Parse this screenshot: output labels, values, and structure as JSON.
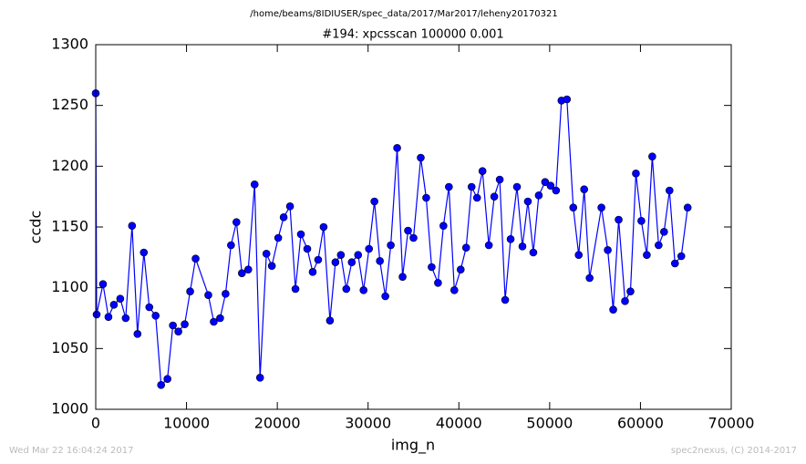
{
  "chart_data": {
    "type": "line",
    "suptitle": "/home/beams/8IDIUSER/spec_data/2017/Mar2017/leheny20170321",
    "title": "#194: xpcsscan 100000 0.001",
    "xlabel": "img_n",
    "ylabel": "ccdc",
    "footer_left": "Wed Mar 22 16:04:24 2017",
    "footer_right": "spec2nexus, (C) 2014-2017",
    "xlim": [
      0,
      70000
    ],
    "ylim": [
      1000,
      1300
    ],
    "xticks": [
      0,
      10000,
      20000,
      30000,
      40000,
      50000,
      60000,
      70000
    ],
    "yticks": [
      1000,
      1050,
      1100,
      1150,
      1200,
      1250,
      1300
    ],
    "grid": false,
    "x": [
      0,
      100,
      800,
      1400,
      2000,
      2700,
      3300,
      4000,
      4600,
      5300,
      5900,
      6600,
      7200,
      7900,
      8500,
      9100,
      9800,
      10400,
      11000,
      12400,
      13000,
      13700,
      14300,
      14900,
      15500,
      16100,
      16800,
      17500,
      18100,
      18800,
      19400,
      20100,
      20700,
      21400,
      22000,
      22600,
      23300,
      23900,
      24500,
      25100,
      25800,
      26400,
      27000,
      27600,
      28200,
      28900,
      29500,
      30100,
      30700,
      31300,
      31900,
      32500,
      33200,
      33800,
      34400,
      35000,
      35800,
      36400,
      37000,
      37700,
      38300,
      38900,
      39500,
      40200,
      40800,
      41400,
      42000,
      42600,
      43300,
      43900,
      44500,
      45100,
      45700,
      46400,
      47000,
      47600,
      48200,
      48800,
      49500,
      50100,
      50700,
      51300,
      51900,
      52600,
      53200,
      53800,
      54400,
      55700,
      56400,
      57000,
      57600,
      58300,
      58900,
      59500,
      60100,
      60700,
      61300,
      62000,
      62600,
      63200,
      63800,
      64500,
      65200
    ],
    "series": [
      {
        "name": "ccdc",
        "color": "#0000ff",
        "values": [
          1260,
          1078,
          1103,
          1076,
          1086,
          1091,
          1075,
          1151,
          1062,
          1129,
          1084,
          1077,
          1020,
          1025,
          1069,
          1064,
          1070,
          1097,
          1124,
          1094,
          1072,
          1075,
          1095,
          1135,
          1154,
          1112,
          1115,
          1185,
          1026,
          1128,
          1118,
          1141,
          1158,
          1167,
          1099,
          1144,
          1132,
          1113,
          1123,
          1150,
          1073,
          1121,
          1127,
          1099,
          1121,
          1127,
          1098,
          1132,
          1171,
          1122,
          1093,
          1135,
          1215,
          1109,
          1147,
          1141,
          1207,
          1174,
          1117,
          1104,
          1151,
          1183,
          1098,
          1115,
          1133,
          1183,
          1174,
          1196,
          1135,
          1175,
          1189,
          1090,
          1140,
          1183,
          1134,
          1171,
          1129,
          1176,
          1187,
          1184,
          1180,
          1254,
          1255,
          1166,
          1127,
          1181,
          1108,
          1166,
          1131,
          1082,
          1156,
          1089,
          1097,
          1194,
          1155,
          1127,
          1208,
          1135,
          1146,
          1180,
          1120,
          1126,
          1166
        ]
      }
    ]
  }
}
